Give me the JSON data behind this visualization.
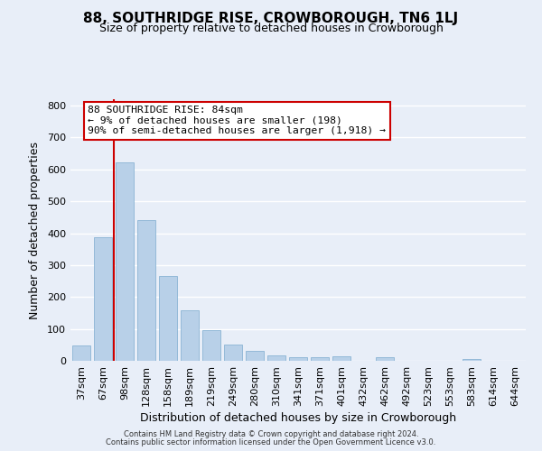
{
  "title": "88, SOUTHRIDGE RISE, CROWBOROUGH, TN6 1LJ",
  "subtitle": "Size of property relative to detached houses in Crowborough",
  "xlabel": "Distribution of detached houses by size in Crowborough",
  "ylabel": "Number of detached properties",
  "bar_labels": [
    "37sqm",
    "67sqm",
    "98sqm",
    "128sqm",
    "158sqm",
    "189sqm",
    "219sqm",
    "249sqm",
    "280sqm",
    "310sqm",
    "341sqm",
    "371sqm",
    "401sqm",
    "432sqm",
    "462sqm",
    "492sqm",
    "523sqm",
    "553sqm",
    "583sqm",
    "614sqm",
    "644sqm"
  ],
  "bar_values": [
    47,
    387,
    623,
    440,
    265,
    157,
    95,
    51,
    30,
    18,
    10,
    10,
    13,
    0,
    10,
    0,
    0,
    0,
    5,
    0,
    0
  ],
  "bar_color": "#b8d0e8",
  "bar_edge_color": "#8ab4d4",
  "vline_color": "#cc0000",
  "ylim": [
    0,
    820
  ],
  "yticks": [
    0,
    100,
    200,
    300,
    400,
    500,
    600,
    700,
    800
  ],
  "annotation_text": "88 SOUTHRIDGE RISE: 84sqm\n← 9% of detached houses are smaller (198)\n90% of semi-detached houses are larger (1,918) →",
  "annotation_box_color": "#ffffff",
  "annotation_box_edge": "#cc0000",
  "footer1": "Contains HM Land Registry data © Crown copyright and database right 2024.",
  "footer2": "Contains public sector information licensed under the Open Government Licence v3.0.",
  "background_color": "#e8eef8",
  "grid_color": "#ffffff",
  "title_fontsize": 11,
  "subtitle_fontsize": 9
}
